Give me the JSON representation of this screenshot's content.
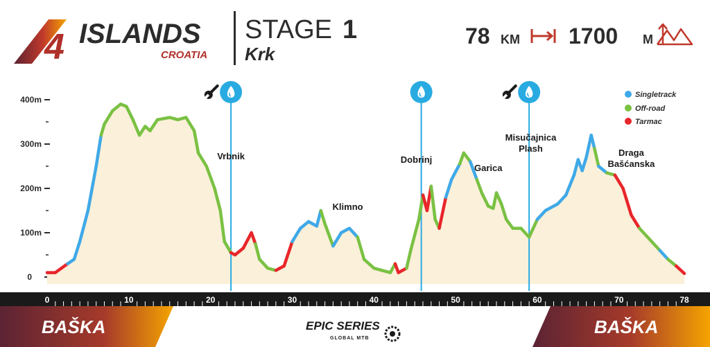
{
  "header": {
    "brand_number": "4",
    "brand_name": "ISLANDS",
    "brand_country": "CROATIA",
    "stage_word": "STAGE",
    "stage_number": "1",
    "stage_place": "Krk",
    "distance_value": "78",
    "distance_unit": "KM",
    "distance_icon": "distance-arrow-icon",
    "elevation_value": "1700",
    "elevation_unit": "M",
    "elevation_icon": "mountains-up-icon"
  },
  "footer": {
    "start_label": "BAŠKA",
    "finish_label": "BAŠKA",
    "sponsor_main": "EPIC SERIES",
    "sponsor_sub": "GLOBAL MTB",
    "sponsor_icon": "chainring-icon"
  },
  "colors": {
    "singletrack": "#3fa9e8",
    "offroad": "#7ac143",
    "tarmac": "#e8262b",
    "fill": "#fbf0d9",
    "water": "#29abe2",
    "brand_gradient": [
      "#5b2333",
      "#f5a400"
    ]
  },
  "chart_data": {
    "type": "area",
    "title": "",
    "xlabel": "",
    "ylabel": "",
    "xlim": [
      0,
      78
    ],
    "ylim": [
      0,
      400
    ],
    "x_ticks": [
      "0",
      "10",
      "20",
      "30",
      "40",
      "50",
      "60",
      "70",
      "78"
    ],
    "y_ticks": [
      "0",
      "100m",
      "200m",
      "300m",
      "400m"
    ],
    "legend": [
      {
        "label": "Singletrack",
        "color": "#3fa9e8"
      },
      {
        "label": "Off-road",
        "color": "#7ac143"
      },
      {
        "label": "Tarmac",
        "color": "#e8262b"
      }
    ],
    "legend_position": "top-right",
    "places": [
      {
        "name": "Vrbnik",
        "km": 22.5
      },
      {
        "name": "Klimno",
        "km": 36.8
      },
      {
        "name": "Dobrinj",
        "km": 45.2
      },
      {
        "name": "Garica",
        "km": 54
      },
      {
        "name": "Misučajnica\nPlash",
        "km": 59.2
      },
      {
        "name": "Draga\nBašćanska",
        "km": 71.5
      }
    ],
    "water_points": [
      22.5,
      45.8,
      59
    ],
    "service_points": [
      20,
      56.5
    ],
    "profile": [
      [
        0,
        10,
        "t"
      ],
      [
        1,
        10,
        "t"
      ],
      [
        2.5,
        30,
        "t"
      ],
      [
        3.3,
        40,
        "s"
      ],
      [
        4,
        80,
        "s"
      ],
      [
        5,
        150,
        "s"
      ],
      [
        6,
        250,
        "s"
      ],
      [
        6.6,
        320,
        "s"
      ],
      [
        7,
        345,
        "o"
      ],
      [
        8,
        375,
        "o"
      ],
      [
        9,
        390,
        "o"
      ],
      [
        9.7,
        385,
        "o"
      ],
      [
        10.5,
        355,
        "o"
      ],
      [
        11.3,
        320,
        "o"
      ],
      [
        12,
        340,
        "o"
      ],
      [
        12.6,
        330,
        "o"
      ],
      [
        13.5,
        355,
        "o"
      ],
      [
        15,
        360,
        "o"
      ],
      [
        16,
        355,
        "o"
      ],
      [
        17,
        360,
        "o"
      ],
      [
        18,
        330,
        "o"
      ],
      [
        18.5,
        280,
        "o"
      ],
      [
        19.5,
        250,
        "o"
      ],
      [
        20.5,
        200,
        "o"
      ],
      [
        21.2,
        150,
        "o"
      ],
      [
        21.7,
        80,
        "o"
      ],
      [
        22.5,
        55,
        "o"
      ],
      [
        23,
        50,
        "t"
      ],
      [
        24,
        65,
        "t"
      ],
      [
        25,
        100,
        "t"
      ],
      [
        25.5,
        75,
        "t"
      ],
      [
        26,
        40,
        "o"
      ],
      [
        27,
        20,
        "o"
      ],
      [
        28,
        15,
        "o"
      ],
      [
        29,
        25,
        "t"
      ],
      [
        30,
        80,
        "t"
      ],
      [
        31,
        110,
        "s"
      ],
      [
        32,
        125,
        "s"
      ],
      [
        33,
        115,
        "s"
      ],
      [
        33.5,
        150,
        "s"
      ],
      [
        34,
        120,
        "o"
      ],
      [
        35,
        70,
        "o"
      ],
      [
        36,
        100,
        "s"
      ],
      [
        37,
        110,
        "s"
      ],
      [
        38,
        90,
        "s"
      ],
      [
        38.8,
        40,
        "o"
      ],
      [
        40,
        20,
        "o"
      ],
      [
        41,
        15,
        "o"
      ],
      [
        42,
        10,
        "o"
      ],
      [
        42.6,
        30,
        "o"
      ],
      [
        43,
        10,
        "t"
      ],
      [
        44,
        20,
        "t"
      ],
      [
        44.5,
        60,
        "o"
      ],
      [
        45.5,
        130,
        "o"
      ],
      [
        46,
        185,
        "o"
      ],
      [
        46.5,
        150,
        "t"
      ],
      [
        47,
        205,
        "t"
      ],
      [
        47.5,
        130,
        "o"
      ],
      [
        48,
        110,
        "o"
      ],
      [
        48.8,
        180,
        "t"
      ],
      [
        49.5,
        220,
        "s"
      ],
      [
        50.5,
        255,
        "s"
      ],
      [
        51,
        280,
        "o"
      ],
      [
        51.8,
        260,
        "o"
      ],
      [
        52.6,
        220,
        "s"
      ],
      [
        53.2,
        190,
        "o"
      ],
      [
        54,
        160,
        "o"
      ],
      [
        54.6,
        155,
        "o"
      ],
      [
        55,
        190,
        "o"
      ],
      [
        55.6,
        165,
        "o"
      ],
      [
        56.2,
        130,
        "o"
      ],
      [
        57,
        110,
        "o"
      ],
      [
        58,
        110,
        "o"
      ],
      [
        59,
        90,
        "o"
      ],
      [
        60,
        130,
        "o"
      ],
      [
        61,
        150,
        "s"
      ],
      [
        62.5,
        165,
        "s"
      ],
      [
        63.5,
        185,
        "s"
      ],
      [
        64.5,
        230,
        "s"
      ],
      [
        65,
        265,
        "s"
      ],
      [
        65.5,
        240,
        "s"
      ],
      [
        66,
        270,
        "s"
      ],
      [
        66.6,
        320,
        "s"
      ],
      [
        67,
        290,
        "s"
      ],
      [
        67.5,
        250,
        "o"
      ],
      [
        68.5,
        235,
        "s"
      ],
      [
        69.5,
        230,
        "o"
      ],
      [
        70.5,
        200,
        "t"
      ],
      [
        71.5,
        140,
        "t"
      ],
      [
        72.5,
        110,
        "t"
      ],
      [
        73.5,
        90,
        "o"
      ],
      [
        75,
        60,
        "o"
      ],
      [
        76,
        40,
        "s"
      ],
      [
        77,
        25,
        "o"
      ],
      [
        78,
        8,
        "t"
      ]
    ]
  }
}
